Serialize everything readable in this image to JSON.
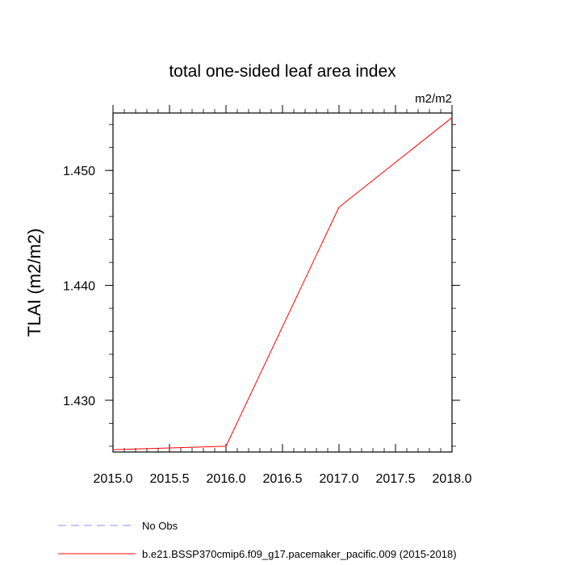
{
  "chart_data": {
    "type": "line",
    "title": "total one-sided leaf area index",
    "units_label": "m2/m2",
    "ylabel": "TLAI  (m2/m2)",
    "xlabel": "",
    "xlim": [
      2015.0,
      2018.0
    ],
    "ylim": [
      1.4255,
      1.455
    ],
    "x_ticks": [
      2015.0,
      2015.5,
      2016.0,
      2016.5,
      2017.0,
      2017.5,
      2018.0
    ],
    "x_tick_labels": [
      "2015.0",
      "2015.5",
      "2016.0",
      "2016.5",
      "2017.0",
      "2017.5",
      "2018.0"
    ],
    "y_ticks": [
      1.43,
      1.44,
      1.45
    ],
    "y_tick_labels": [
      "1.430",
      "1.440",
      "1.450"
    ],
    "grid": false,
    "legend_position": "bottom-left",
    "series": [
      {
        "name": "b.e21.BSSP370cmip6.f09_g17.pacemaker_pacific.009 (2015-2018)",
        "color": "#ff0000",
        "dash": "solid",
        "x": [
          2015.0,
          2016.0,
          2017.0,
          2018.0
        ],
        "y": [
          1.4257,
          1.426,
          1.4468,
          1.4546
        ]
      }
    ],
    "legend": [
      {
        "label": "No Obs",
        "color": "#8c8cf0",
        "dash": "dashed"
      },
      {
        "label": "b.e21.BSSP370cmip6.f09_g17.pacemaker_pacific.009 (2015-2018)",
        "color": "#ff0000",
        "dash": "solid"
      }
    ]
  }
}
